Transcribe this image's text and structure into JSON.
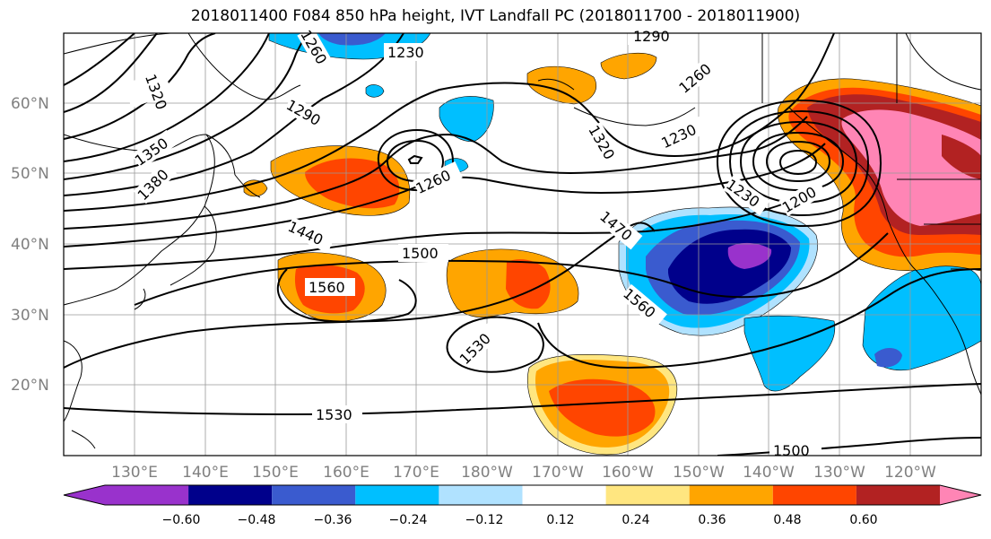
{
  "title": "2018011400 F084 850 hPa height, IVT Landfall PC (2018011700 - 2018011900)",
  "map": {
    "lon_labels": [
      "130°E",
      "140°E",
      "150°E",
      "160°E",
      "170°E",
      "180°W",
      "170°W",
      "160°W",
      "150°W",
      "140°W",
      "130°W",
      "120°W"
    ],
    "lat_labels": [
      "60°N",
      "50°N",
      "40°N",
      "30°N",
      "20°N"
    ],
    "contour_labels": [
      "1320",
      "1290",
      "1230",
      "1290",
      "1260",
      "1260",
      "1350",
      "1320",
      "1260",
      "1230",
      "1380",
      "1230",
      "1200",
      "1440",
      "1500",
      "1470",
      "1560",
      "1560",
      "1530",
      "1530",
      "1500"
    ]
  },
  "colorbar": {
    "ticks": [
      "−0.60",
      "−0.48",
      "−0.36",
      "−0.24",
      "−0.12",
      "0.12",
      "0.24",
      "0.36",
      "0.48",
      "0.60"
    ],
    "colors": [
      "#9932cc",
      "#00008b",
      "#3a5bcf",
      "#00bfff",
      "#b0e2ff",
      "#ffffff",
      "#ffe680",
      "#ffa500",
      "#ff4500",
      "#b22222",
      "#ff85b5"
    ]
  },
  "colors": {
    "purple": "#9932cc",
    "navy": "#00008b",
    "blue": "#3a5bcf",
    "sky": "#00bfff",
    "lightsky": "#b0e2ff",
    "yellow": "#ffe680",
    "orange": "#ffa500",
    "redorange": "#ff4500",
    "darkred": "#b22222",
    "pink": "#ff85b5"
  }
}
